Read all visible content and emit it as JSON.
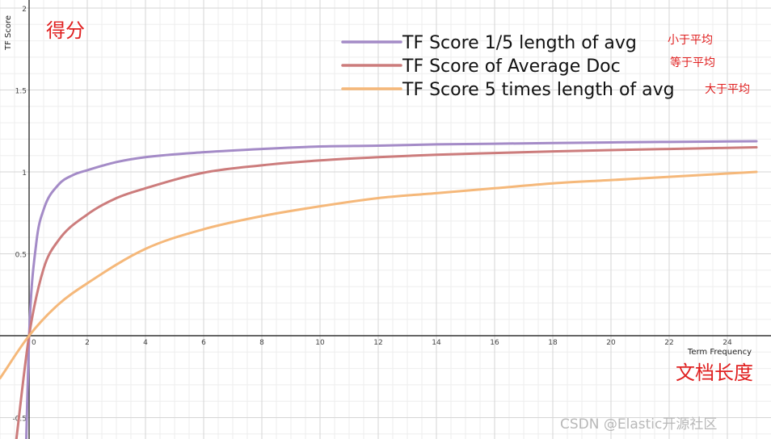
{
  "chart_data": {
    "type": "line",
    "xlabel": "Term Frequency",
    "ylabel": "TF Score",
    "xlim": [
      -1,
      25
    ],
    "ylim": [
      -0.65,
      2
    ],
    "x_ticks": [
      2,
      4,
      6,
      8,
      10,
      12,
      14,
      16,
      18,
      20,
      22,
      24
    ],
    "x_zero_label": "0",
    "y_ticks": [
      {
        "value": 2,
        "label": "2"
      },
      {
        "value": 1.5,
        "label": "1.5"
      },
      {
        "value": 1,
        "label": "1"
      },
      {
        "value": 0.5,
        "label": "0.5"
      },
      {
        "value": -0.5,
        "label": "-0.5"
      }
    ],
    "grid": true,
    "legend_position": "top-right",
    "series": [
      {
        "name": "TF Score 1/5 length of avg",
        "color": "#a48bc7",
        "note": "小于平均",
        "x": [
          -0.1,
          0,
          0.25,
          0.5,
          1,
          1.5,
          2,
          3,
          4,
          6,
          8,
          10,
          12,
          14,
          16,
          18,
          20,
          22,
          25
        ],
        "y": [
          -0.65,
          0,
          0.57,
          0.77,
          0.92,
          0.98,
          1.01,
          1.06,
          1.09,
          1.12,
          1.14,
          1.155,
          1.16,
          1.168,
          1.172,
          1.176,
          1.18,
          1.183,
          1.187
        ]
      },
      {
        "name": "TF Score of Average Doc",
        "color": "#cc7c7c",
        "note": "等于平均",
        "x": [
          -0.45,
          0,
          0.5,
          1,
          2,
          3,
          4,
          6,
          8,
          10,
          12,
          14,
          16,
          18,
          20,
          22,
          25
        ],
        "y": [
          -0.65,
          0,
          0.41,
          0.58,
          0.74,
          0.84,
          0.9,
          0.995,
          1.04,
          1.07,
          1.09,
          1.105,
          1.115,
          1.125,
          1.133,
          1.14,
          1.15
        ]
      },
      {
        "name": "TF Score 5 times length of avg",
        "color": "#f5b87a",
        "note": "大于平均",
        "x": [
          -1,
          0,
          1,
          2,
          4,
          6,
          8,
          10,
          12,
          14,
          16,
          18,
          20,
          22,
          25
        ],
        "y": [
          -0.26,
          0,
          0.19,
          0.32,
          0.53,
          0.65,
          0.73,
          0.79,
          0.84,
          0.87,
          0.9,
          0.93,
          0.95,
          0.97,
          1.0
        ]
      }
    ]
  },
  "annotations": {
    "y_title": "得分",
    "x_title": "文档长度"
  },
  "watermark": "CSDN @Elastic开源社区"
}
